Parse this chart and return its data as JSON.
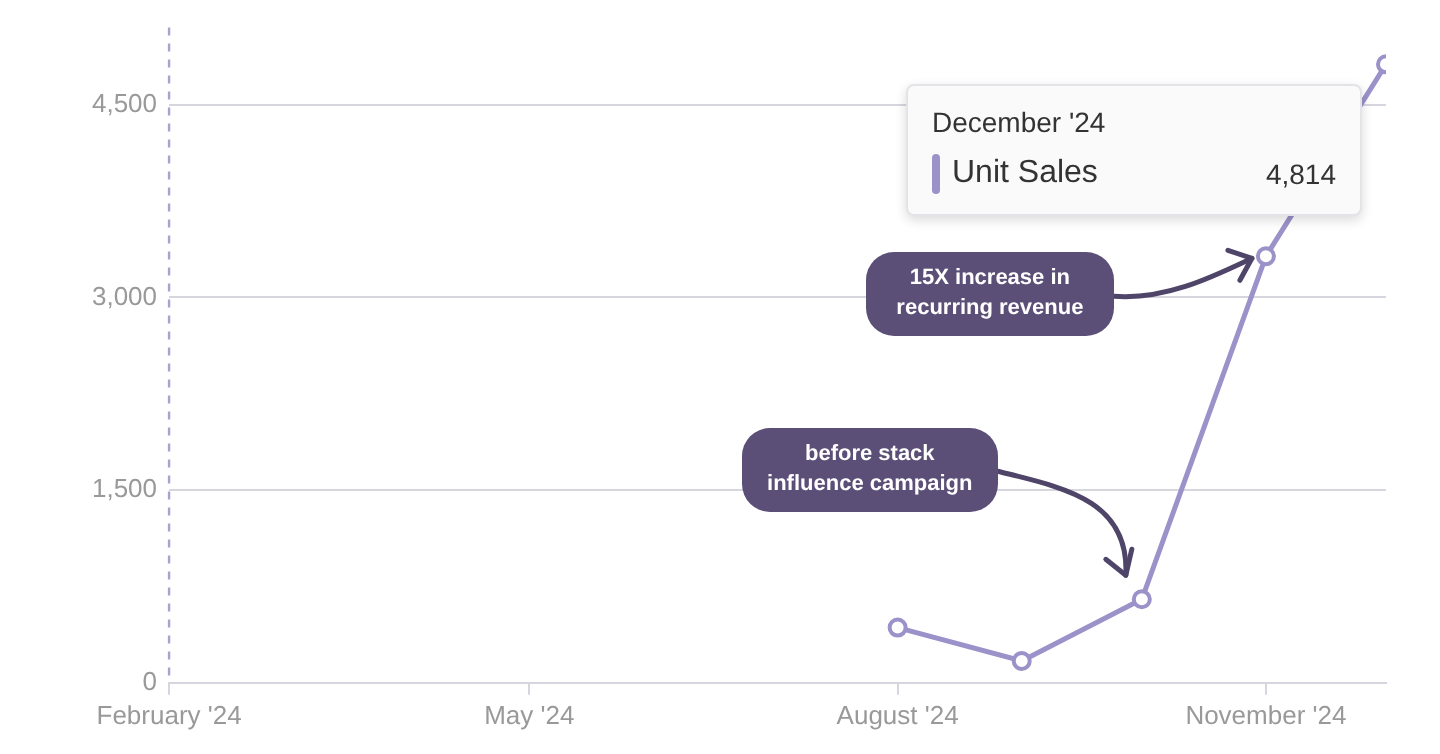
{
  "chart_data": {
    "type": "line",
    "x": [
      "2024-08",
      "2024-09",
      "2024-10",
      "2024-11",
      "2024-12"
    ],
    "series": [
      {
        "name": "Unit Sales",
        "color": "#9b92c9",
        "values": [
          430,
          170,
          650,
          3320,
          4814
        ]
      }
    ],
    "xlim": [
      "2024-02",
      "2024-12"
    ],
    "xticks": [
      {
        "value": "2024-02",
        "label": "February '24"
      },
      {
        "value": "2024-05",
        "label": "May '24"
      },
      {
        "value": "2024-08",
        "label": "August '24"
      },
      {
        "value": "2024-11",
        "label": "November '24"
      }
    ],
    "ylim": [
      0,
      5100
    ],
    "yticks": [
      {
        "value": 0,
        "label": "0"
      },
      {
        "value": 1500,
        "label": "1,500"
      },
      {
        "value": 3000,
        "label": "3,000"
      },
      {
        "value": 4500,
        "label": "4,500"
      }
    ],
    "grid": "y",
    "legend": "top right",
    "marker": "circle",
    "line_style": "solid",
    "ref_lines": [
      {
        "axis": "x",
        "value": "2024-02",
        "color": "#a8a2cf",
        "line_style": "dashed"
      }
    ],
    "annotations": [
      "December '24",
      "4,814",
      "15X increase in recurring revenue",
      "before stack influence campaign"
    ]
  }
}
